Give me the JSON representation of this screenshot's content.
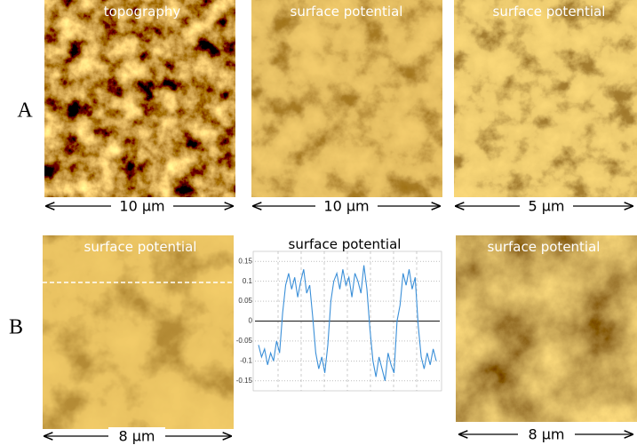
{
  "figure": {
    "rows": [
      {
        "label": "A",
        "panels": [
          {
            "title": "topography",
            "scale": "10 μm"
          },
          {
            "title": "surface potential",
            "scale": "10 μm"
          },
          {
            "title": "surface potential",
            "scale": "5 μm"
          }
        ]
      },
      {
        "label": "B",
        "panels": [
          {
            "title": "surface potential",
            "scale": "8 μm"
          },
          {
            "title": "surface potential",
            "scale": "8 μm"
          }
        ]
      }
    ]
  },
  "chart_data": {
    "type": "line",
    "title": "surface potential",
    "color": "#3a8fd8",
    "ylim": [
      -0.175,
      0.175
    ],
    "yticks": [
      0.15,
      0.1,
      0.05,
      0,
      -0.05,
      -0.1,
      -0.15
    ],
    "grid": true,
    "values": [
      -0.06,
      -0.09,
      -0.07,
      -0.11,
      -0.08,
      -0.1,
      -0.05,
      -0.08,
      0.02,
      0.09,
      0.12,
      0.08,
      0.11,
      0.06,
      0.1,
      0.13,
      0.07,
      0.09,
      0.01,
      -0.08,
      -0.12,
      -0.09,
      -0.13,
      -0.06,
      0.05,
      0.1,
      0.12,
      0.08,
      0.13,
      0.09,
      0.11,
      0.06,
      0.12,
      0.1,
      0.07,
      0.14,
      0.08,
      -0.02,
      -0.1,
      -0.14,
      -0.09,
      -0.12,
      -0.15,
      -0.08,
      -0.11,
      -0.13,
      0.0,
      0.04,
      0.12,
      0.09,
      0.13,
      0.08,
      0.11,
      -0.01,
      -0.09,
      -0.12,
      -0.08,
      -0.11,
      -0.07,
      -0.1
    ]
  }
}
